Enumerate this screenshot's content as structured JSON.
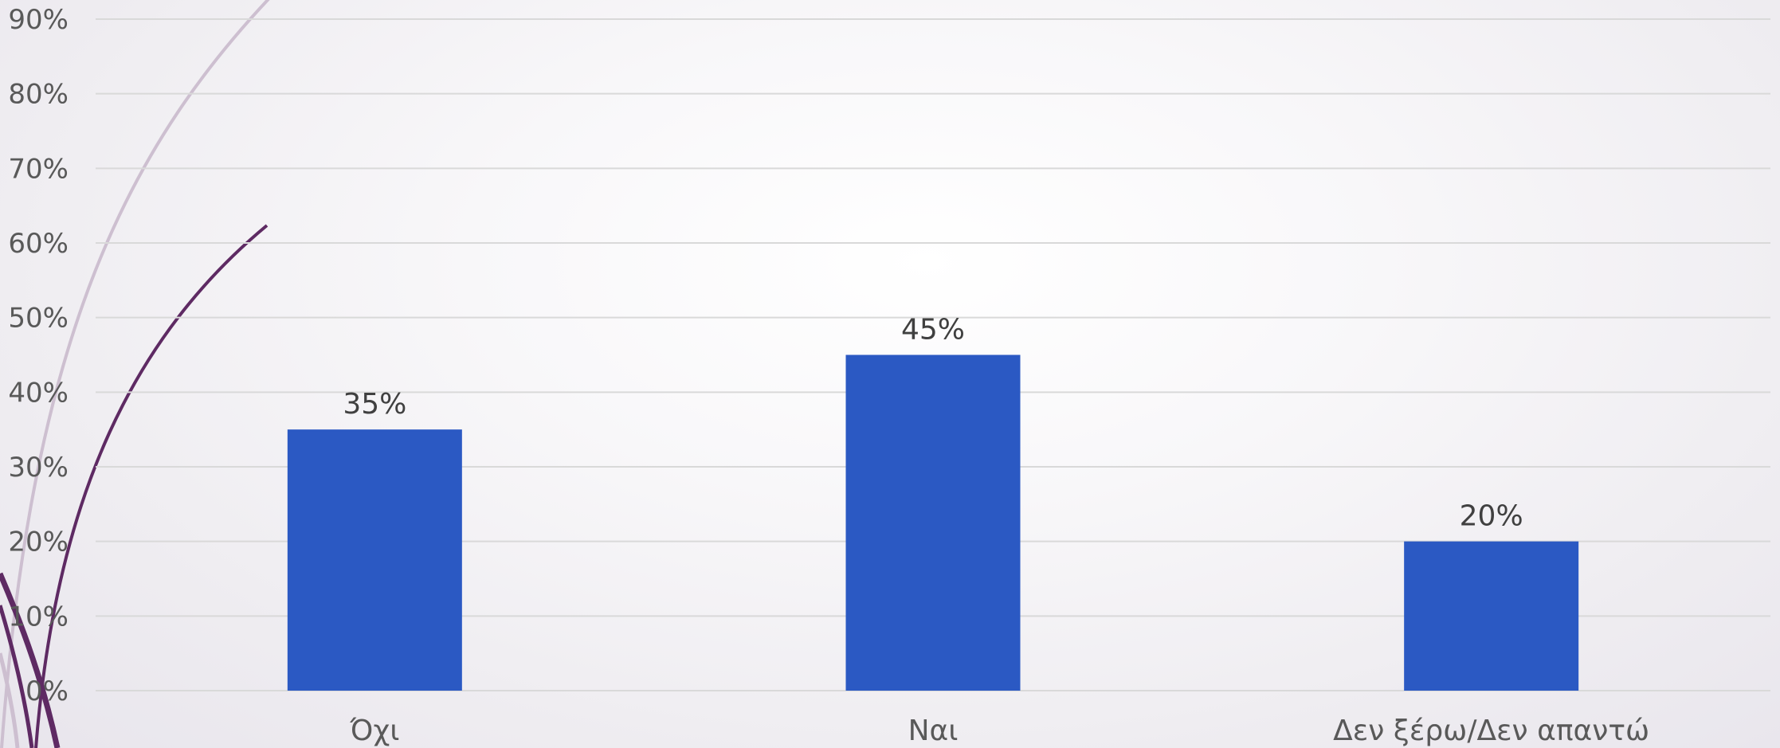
{
  "chart_data": {
    "type": "bar",
    "categories": [
      "Όχι",
      "Ναι",
      "Δεν ξέρω/Δεν απαντώ"
    ],
    "values": [
      35,
      45,
      20
    ],
    "value_labels": [
      "35%",
      "45%",
      "20%"
    ],
    "ylim": [
      0,
      90
    ],
    "y_ticks": [
      0,
      10,
      20,
      30,
      40,
      50,
      60,
      70,
      80,
      90
    ],
    "y_tick_labels": [
      "0%",
      "10%",
      "20%",
      "30%",
      "40%",
      "50%",
      "60%",
      "70%",
      "80%",
      "90%"
    ],
    "grid": true,
    "legend": "none",
    "colors": {
      "bar": "#2B59C3",
      "grid": "#d9d9d9",
      "decor_dark": "#5e2a63",
      "decor_light": "#cdbfd0"
    }
  }
}
